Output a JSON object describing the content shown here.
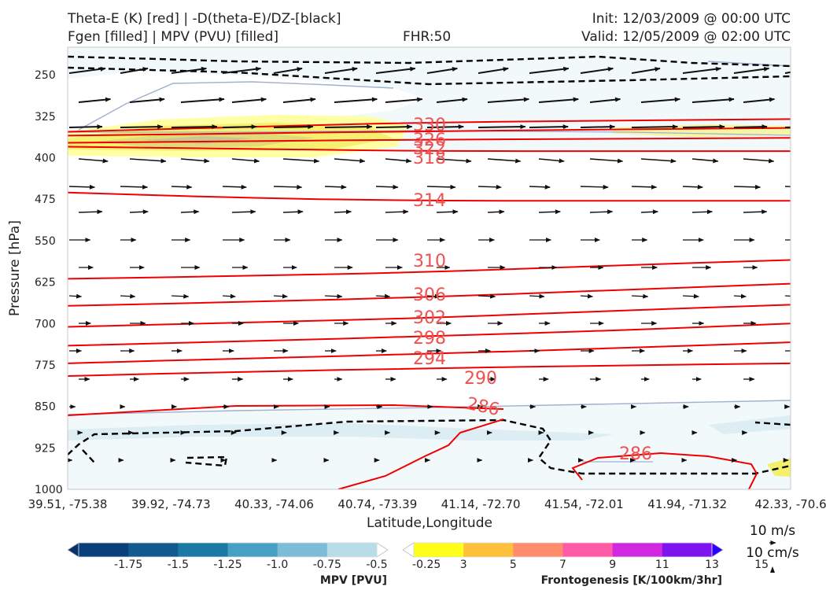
{
  "header": {
    "title_line1": "Theta-E (K) [red] | -D(theta-E)/DZ-[black]",
    "title_line2": "Fgen [filled] | MPV (PVU) [filled]",
    "fhr": "FHR:50",
    "init": "Init: 12/03/2009 @ 00:00 UTC",
    "valid": "Valid: 12/05/2009 @ 02:00 UTC"
  },
  "chart_data": {
    "type": "cross-section",
    "xlabel": "Latitude,Longitude",
    "ylabel": "Pressure [hPa]",
    "x_ticks": [
      "39.51, -75.38",
      "39.92, -74.73",
      "40.33, -74.06",
      "40.74, -73.39",
      "41.14, -72.70",
      "41.54, -72.01",
      "41.94, -71.32",
      "42.33, -70.6"
    ],
    "y_ticks": [
      250,
      325,
      400,
      475,
      550,
      625,
      700,
      775,
      850,
      925,
      1000
    ],
    "ylim": [
      1000,
      200
    ],
    "theta_e_contours": [
      {
        "label": "330",
        "pressure": [
          353,
          344,
          336,
          333,
          330
        ]
      },
      {
        "label": "326",
        "pressure": [
          360,
          356,
          352,
          349,
          346
        ]
      },
      {
        "label": "322",
        "pressure": [
          373,
          370,
          367,
          366,
          364
        ]
      },
      {
        "label": "318",
        "pressure": [
          380,
          384,
          388,
          388,
          388
        ]
      },
      {
        "label": "314",
        "pressure": [
          463,
          473,
          478,
          478,
          478
        ]
      },
      {
        "label": "310",
        "pressure": [
          619,
          614,
          607,
          595,
          585
        ]
      },
      {
        "label": "306",
        "pressure": [
          668,
          661,
          652,
          640,
          628
        ]
      },
      {
        "label": "302",
        "pressure": [
          706,
          698,
          690,
          677,
          666
        ]
      },
      {
        "label": "298",
        "pressure": [
          740,
          732,
          723,
          713,
          700
        ]
      },
      {
        "label": "294",
        "pressure": [
          772,
          763,
          755,
          745,
          734
        ]
      },
      {
        "label": "290",
        "pressure": [
          795,
          787,
          781,
          776,
          772
        ]
      }
    ],
    "contour_labels": {
      "286a": "286",
      "286b": "286"
    },
    "wind_scale": {
      "horizontal": "10 m/s",
      "vertical": "10 cm/s"
    },
    "colorbars": [
      {
        "title": "MPV [PVU]",
        "ticks": [
          "-1.75",
          "-1.5",
          "-1.25",
          "-1.0",
          "-0.75",
          "-0.5",
          "-0.25"
        ],
        "colors": [
          "#08306b",
          "#0b3f7a",
          "#105a8f",
          "#1b7aa3",
          "#45a0c4",
          "#7cbcd6",
          "#b9dde8",
          "#ffffff"
        ]
      },
      {
        "title": "Frontogenesis [K/100km/3hr]",
        "ticks": [
          "3",
          "5",
          "7",
          "9",
          "11",
          "13",
          "15"
        ],
        "colors": [
          "#ffffff",
          "#ffff1a",
          "#ffc03c",
          "#ff8c6b",
          "#ff5aa8",
          "#cf28e0",
          "#7d14f0",
          "#2a00ff"
        ]
      }
    ]
  }
}
